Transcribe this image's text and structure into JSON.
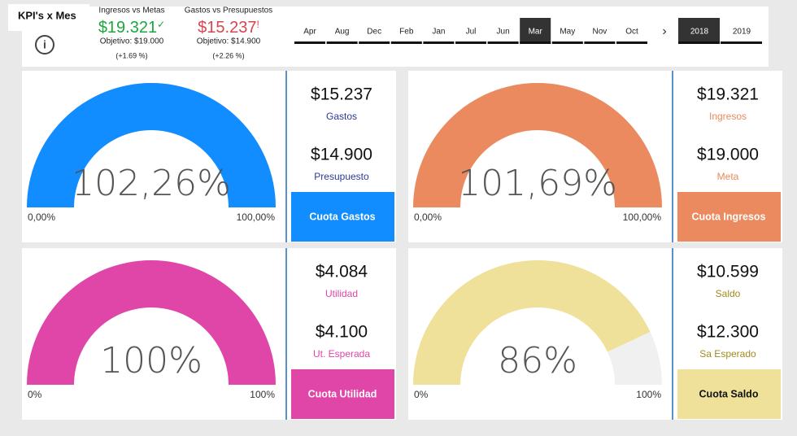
{
  "header": {
    "title": "KPI's x Mes",
    "kpis": [
      {
        "title": "Ingresos vs Metas",
        "value": "$19.321",
        "icon": "✓",
        "target": "Objetivo: $19.000",
        "change": "(+1.69 %)",
        "color": "#1aa83c"
      },
      {
        "title": "Gastos vs Presupuestos",
        "value": "$15.237",
        "icon": "!",
        "target": "Objetivo: $14.900",
        "change": "(+2.26 %)",
        "color": "#d64550"
      }
    ],
    "months": [
      "Apr",
      "Aug",
      "Dec",
      "Feb",
      "Jan",
      "Jul",
      "Jun",
      "Mar",
      "May",
      "Nov",
      "Oct"
    ],
    "selected_month": "Mar",
    "years": [
      "2018",
      "2019"
    ],
    "selected_year": "2018"
  },
  "panels": [
    {
      "color": "#118dff",
      "stat_color": "#2b3a9a",
      "button_text_color": "#ffffff",
      "gauge": {
        "value": 102.26,
        "label": "102,26%",
        "min": {
          "value": 0,
          "label": "0,00%"
        },
        "max": {
          "value": 100,
          "label": "100,00%"
        }
      },
      "stats": [
        {
          "value": "$15.237",
          "label": "Gastos"
        },
        {
          "value": "$14.900",
          "label": "Presupuesto"
        }
      ],
      "button": "Cuota Gastos"
    },
    {
      "color": "#ea8a5e",
      "stat_color": "#ea8a5e",
      "button_text_color": "#ffffff",
      "gauge": {
        "value": 101.69,
        "label": "101,69%",
        "min": {
          "value": 0,
          "label": "0,00%"
        },
        "max": {
          "value": 100,
          "label": "100,00%"
        }
      },
      "stats": [
        {
          "value": "$19.321",
          "label": "Ingresos"
        },
        {
          "value": "$19.000",
          "label": "Meta"
        }
      ],
      "button": "Cuota Ingresos"
    },
    {
      "color": "#e045a8",
      "stat_color": "#e045a8",
      "button_text_color": "#ffffff",
      "gauge": {
        "value": 100,
        "label": "100%",
        "min": {
          "value": 0,
          "label": "0%"
        },
        "max": {
          "value": 100,
          "label": "100%"
        }
      },
      "stats": [
        {
          "value": "$4.084",
          "label": "Utilidad"
        },
        {
          "value": "$4.100",
          "label": "Ut. Esperada"
        }
      ],
      "button": "Cuota Utilidad"
    },
    {
      "color": "#f0e19a",
      "stat_color": "#a38a1c",
      "button_text_color": "#111111",
      "gauge": {
        "value": 86,
        "label": "86%",
        "min": {
          "value": 0,
          "label": "0%"
        },
        "max": {
          "value": 100,
          "label": "100%"
        }
      },
      "stats": [
        {
          "value": "$10.599",
          "label": "Saldo"
        },
        {
          "value": "$12.300",
          "label": "Sa Esperado"
        }
      ],
      "button": "Cuota Saldo"
    }
  ]
}
